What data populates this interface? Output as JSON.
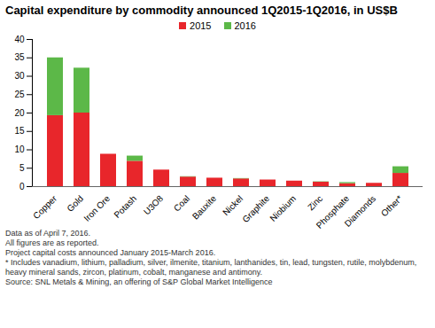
{
  "chart_data": {
    "type": "bar",
    "title": "Capital expenditure by commodity announced 1Q2015-1Q2016, in US$B",
    "categories": [
      "Copper",
      "Gold",
      "Iron Ore",
      "Potash",
      "U3O8",
      "Coal",
      "Bauxite",
      "Nickel",
      "Graphite",
      "Niobium",
      "Zinc",
      "Phosphate",
      "Diamonds",
      "Other*"
    ],
    "series": [
      {
        "name": "2015",
        "color": "#e8262b",
        "values": [
          19.3,
          20.0,
          8.8,
          6.9,
          4.5,
          2.6,
          2.3,
          2.1,
          1.8,
          1.5,
          1.2,
          0.8,
          0.9,
          3.6
        ]
      },
      {
        "name": "2016",
        "color": "#5cb848",
        "values": [
          15.7,
          12.2,
          0,
          1.4,
          0,
          0.1,
          0,
          0.1,
          0,
          0,
          0.1,
          0.3,
          0,
          1.8
        ]
      }
    ],
    "stacked": true,
    "ylim": [
      0,
      40
    ],
    "yticks": [
      0,
      5,
      10,
      15,
      20,
      25,
      30,
      35,
      40
    ],
    "grid": false,
    "legend": "top",
    "annotations": [
      "Data as of April 7, 2016.",
      "All figures are as reported.",
      "Project capital costs announced January 2015-March 2016.",
      "* Includes vanadium, lithium, palladium, silver, ilmenite, titanium, lanthanides, tin, lead, tungsten, rutile, molybdenum, heavy mineral sands, zircon, platinum, cobalt, manganese and antimony.",
      "Source: SNL Metals & Mining, an offering of S&P Global Market Intelligence"
    ]
  }
}
